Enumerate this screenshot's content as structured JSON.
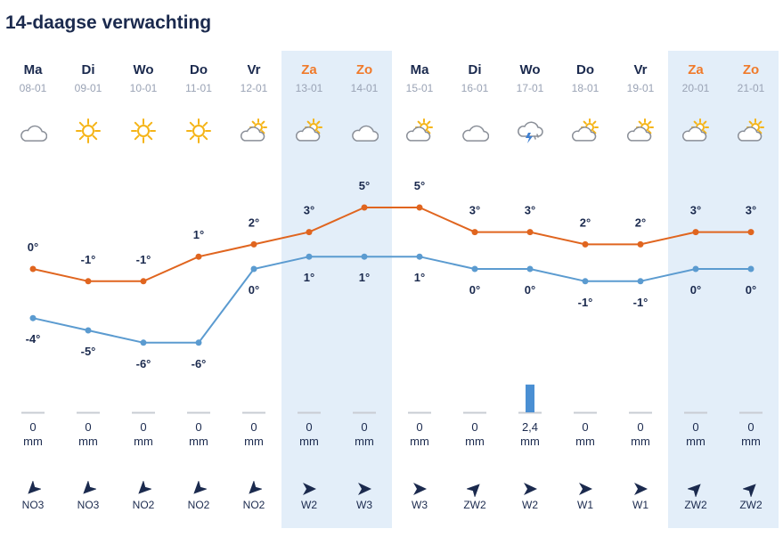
{
  "title": "14-daagse verwachting",
  "colors": {
    "max": "#e0651f",
    "min": "#5b9bd0",
    "weekend_bg": "#e3eef9",
    "weekend_text": "#f07a2a",
    "rain_bar": "#4a8fd3",
    "baseline": "#c8ccd3"
  },
  "chart_data": {
    "type": "line",
    "title": "14-daagse verwachting",
    "xlabel": "",
    "ylabel": "",
    "categories": [
      "08-01",
      "09-01",
      "10-01",
      "11-01",
      "12-01",
      "13-01",
      "14-01",
      "15-01",
      "16-01",
      "17-01",
      "18-01",
      "19-01",
      "20-01",
      "21-01"
    ],
    "series": [
      {
        "values": [
          0,
          -1,
          -1,
          1,
          2,
          3,
          5,
          5,
          3,
          3,
          2,
          2,
          3,
          3
        ],
        "color": "#e0651f"
      },
      {
        "values": [
          -4,
          -5,
          -6,
          -6,
          0,
          1,
          1,
          1,
          0,
          0,
          -1,
          -1,
          0,
          0
        ],
        "color": "#5b9bd0"
      }
    ],
    "precipitation_mm": [
      0,
      0,
      0,
      0,
      0,
      0,
      0,
      0,
      0,
      2.4,
      0,
      0,
      0,
      0
    ],
    "unit": "°"
  },
  "days": [
    {
      "name": "Ma",
      "date": "08-01",
      "icon": "cloud-icon",
      "weekend": false,
      "precip": "0",
      "unit": "mm",
      "wind": "NO3",
      "wind_dir": 225
    },
    {
      "name": "Di",
      "date": "09-01",
      "icon": "sun-icon",
      "weekend": false,
      "precip": "0",
      "unit": "mm",
      "wind": "NO3",
      "wind_dir": 225
    },
    {
      "name": "Wo",
      "date": "10-01",
      "icon": "sun-icon",
      "weekend": false,
      "precip": "0",
      "unit": "mm",
      "wind": "NO2",
      "wind_dir": 225
    },
    {
      "name": "Do",
      "date": "11-01",
      "icon": "sun-icon",
      "weekend": false,
      "precip": "0",
      "unit": "mm",
      "wind": "NO2",
      "wind_dir": 225
    },
    {
      "name": "Vr",
      "date": "12-01",
      "icon": "partly-cloudy-icon",
      "weekend": false,
      "precip": "0",
      "unit": "mm",
      "wind": "NO2",
      "wind_dir": 225
    },
    {
      "name": "Za",
      "date": "13-01",
      "icon": "partly-cloudy-icon",
      "weekend": true,
      "precip": "0",
      "unit": "mm",
      "wind": "W2",
      "wind_dir": 90
    },
    {
      "name": "Zo",
      "date": "14-01",
      "icon": "cloud-icon",
      "weekend": true,
      "precip": "0",
      "unit": "mm",
      "wind": "W3",
      "wind_dir": 90
    },
    {
      "name": "Ma",
      "date": "15-01",
      "icon": "partly-cloudy-icon",
      "weekend": false,
      "precip": "0",
      "unit": "mm",
      "wind": "W3",
      "wind_dir": 90
    },
    {
      "name": "Di",
      "date": "16-01",
      "icon": "cloud-icon",
      "weekend": false,
      "precip": "0",
      "unit": "mm",
      "wind": "ZW2",
      "wind_dir": 45
    },
    {
      "name": "Wo",
      "date": "17-01",
      "icon": "thunder-icon",
      "weekend": false,
      "precip": "2,4",
      "unit": "mm",
      "wind": "W2",
      "wind_dir": 90
    },
    {
      "name": "Do",
      "date": "18-01",
      "icon": "partly-cloudy-icon",
      "weekend": false,
      "precip": "0",
      "unit": "mm",
      "wind": "W1",
      "wind_dir": 90
    },
    {
      "name": "Vr",
      "date": "19-01",
      "icon": "partly-cloudy-icon",
      "weekend": false,
      "precip": "0",
      "unit": "mm",
      "wind": "W1",
      "wind_dir": 90
    },
    {
      "name": "Za",
      "date": "20-01",
      "icon": "partly-cloudy-icon",
      "weekend": true,
      "precip": "0",
      "unit": "mm",
      "wind": "ZW2",
      "wind_dir": 45
    },
    {
      "name": "Zo",
      "date": "21-01",
      "icon": "partly-cloudy-icon",
      "weekend": true,
      "precip": "0",
      "unit": "mm",
      "wind": "ZW2",
      "wind_dir": 45
    }
  ]
}
